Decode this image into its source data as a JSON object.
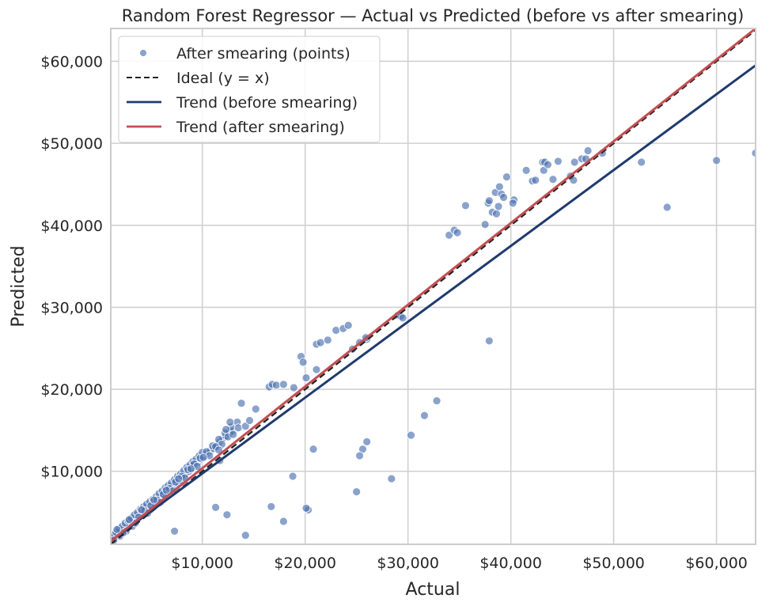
{
  "chart_data": {
    "type": "scatter",
    "title": "Random Forest Regressor — Actual vs Predicted (before vs after smearing)",
    "xlabel": "Actual",
    "ylabel": "Predicted",
    "xlim": [
      1100,
      63800
    ],
    "ylim": [
      1100,
      64000
    ],
    "xticks": [
      10000,
      20000,
      30000,
      40000,
      50000,
      60000
    ],
    "xtick_labels": [
      "$10,000",
      "$20,000",
      "$30,000",
      "$40,000",
      "$50,000",
      "$60,000"
    ],
    "yticks": [
      10000,
      20000,
      30000,
      40000,
      50000,
      60000
    ],
    "ytick_labels": [
      "$10,000",
      "$20,000",
      "$30,000",
      "$40,000",
      "$50,000",
      "$60,000"
    ],
    "grid": true,
    "legend_position": "top-left",
    "colors": {
      "points": "#4c72b0",
      "ideal": "#222222",
      "trend_before": "#1f3a6e",
      "trend_after": "#c44e52",
      "grid": "#d0d0d0",
      "frame": "#cccccc"
    },
    "series": [
      {
        "name": "After smearing (points)",
        "kind": "scatter",
        "points": [
          [
            1200,
            1700
          ],
          [
            1500,
            2000
          ],
          [
            1800,
            2400
          ],
          [
            2100,
            2600
          ],
          [
            2400,
            2900
          ],
          [
            2700,
            3200
          ],
          [
            3000,
            3500
          ],
          [
            3300,
            3900
          ],
          [
            3600,
            4200
          ],
          [
            3900,
            4500
          ],
          [
            4200,
            4800
          ],
          [
            4500,
            5100
          ],
          [
            4800,
            5400
          ],
          [
            5100,
            5700
          ],
          [
            5400,
            6000
          ],
          [
            5700,
            6300
          ],
          [
            6000,
            6700
          ],
          [
            6300,
            7000
          ],
          [
            6600,
            7400
          ],
          [
            6900,
            7800
          ],
          [
            7200,
            8200
          ],
          [
            7500,
            8600
          ],
          [
            7800,
            8900
          ],
          [
            8100,
            9300
          ],
          [
            8400,
            9700
          ],
          [
            8700,
            10000
          ],
          [
            9000,
            10400
          ],
          [
            9300,
            10800
          ],
          [
            9600,
            11100
          ],
          [
            9900,
            11500
          ],
          [
            10200,
            11800
          ],
          [
            10500,
            12200
          ],
          [
            10800,
            12500
          ],
          [
            11100,
            12800
          ],
          [
            11400,
            13200
          ],
          [
            11700,
            13600
          ],
          [
            12000,
            14000
          ],
          [
            12300,
            14300
          ],
          [
            12600,
            14600
          ],
          [
            12900,
            14900
          ],
          [
            1300,
            2200
          ],
          [
            1600,
            2600
          ],
          [
            1900,
            3000
          ],
          [
            2200,
            3300
          ],
          [
            2500,
            3700
          ],
          [
            2800,
            4000
          ],
          [
            3100,
            4300
          ],
          [
            3400,
            4700
          ],
          [
            3700,
            5000
          ],
          [
            4000,
            5400
          ],
          [
            4300,
            5700
          ],
          [
            4600,
            6000
          ],
          [
            4900,
            6300
          ],
          [
            5200,
            6600
          ],
          [
            5500,
            6900
          ],
          [
            5800,
            7300
          ],
          [
            6100,
            7600
          ],
          [
            6400,
            8000
          ],
          [
            6700,
            8300
          ],
          [
            7000,
            8600
          ],
          [
            7300,
            9000
          ],
          [
            7600,
            9400
          ],
          [
            7900,
            9700
          ],
          [
            8200,
            10100
          ],
          [
            8500,
            10500
          ],
          [
            8800,
            10800
          ],
          [
            9100,
            11200
          ],
          [
            9400,
            11500
          ],
          [
            9700,
            11900
          ],
          [
            10000,
            12300
          ],
          [
            2000,
            2100
          ],
          [
            2600,
            2700
          ],
          [
            3200,
            3300
          ],
          [
            3800,
            4400
          ],
          [
            4400,
            5200
          ],
          [
            5000,
            5800
          ],
          [
            5600,
            6500
          ],
          [
            6200,
            7200
          ],
          [
            6800,
            7900
          ],
          [
            7400,
            8700
          ],
          [
            8000,
            9400
          ],
          [
            8600,
            10200
          ],
          [
            9200,
            10900
          ],
          [
            9800,
            11600
          ],
          [
            10400,
            12400
          ],
          [
            11000,
            13100
          ],
          [
            11600,
            13900
          ],
          [
            12200,
            14700
          ],
          [
            12800,
            15400
          ],
          [
            13400,
            16000
          ],
          [
            1400,
            1600
          ],
          [
            2300,
            2500
          ],
          [
            3500,
            3700
          ],
          [
            4700,
            4900
          ],
          [
            5900,
            6200
          ],
          [
            7100,
            7600
          ],
          [
            8300,
            9200
          ],
          [
            9500,
            10600
          ],
          [
            10700,
            11900
          ],
          [
            11900,
            13300
          ],
          [
            1700,
            2900
          ],
          [
            2900,
            4100
          ],
          [
            4100,
            5300
          ],
          [
            5300,
            6500
          ],
          [
            6500,
            7700
          ],
          [
            7700,
            9100
          ],
          [
            8900,
            10300
          ],
          [
            10100,
            11700
          ],
          [
            11300,
            13000
          ],
          [
            12500,
            14200
          ],
          [
            13000,
            14500
          ],
          [
            13500,
            15300
          ],
          [
            13800,
            18300
          ],
          [
            14200,
            15500
          ],
          [
            14600,
            16200
          ],
          [
            15200,
            17600
          ],
          [
            16500,
            20300
          ],
          [
            16800,
            20600
          ],
          [
            17200,
            20500
          ],
          [
            17900,
            20600
          ],
          [
            18900,
            20200
          ],
          [
            19600,
            24000
          ],
          [
            19800,
            23300
          ],
          [
            20100,
            21400
          ],
          [
            21100,
            25500
          ],
          [
            21500,
            25700
          ],
          [
            22200,
            26000
          ],
          [
            21100,
            22400
          ],
          [
            23000,
            27200
          ],
          [
            23700,
            27400
          ],
          [
            24200,
            27800
          ],
          [
            24600,
            24900
          ],
          [
            25300,
            25700
          ],
          [
            26000,
            26100
          ],
          [
            25900,
            26300
          ],
          [
            29000,
            29000
          ],
          [
            29300,
            28900
          ],
          [
            29500,
            28700
          ],
          [
            34000,
            38800
          ],
          [
            34500,
            39400
          ],
          [
            34800,
            39100
          ],
          [
            35600,
            42400
          ],
          [
            37500,
            40100
          ],
          [
            37800,
            42700
          ],
          [
            37900,
            43000
          ],
          [
            38200,
            41600
          ],
          [
            38500,
            44000
          ],
          [
            38600,
            41400
          ],
          [
            38800,
            42300
          ],
          [
            38900,
            44700
          ],
          [
            39100,
            43800
          ],
          [
            39300,
            43400
          ],
          [
            39600,
            45900
          ],
          [
            40300,
            43100
          ],
          [
            40200,
            42700
          ],
          [
            41500,
            46700
          ],
          [
            42100,
            45400
          ],
          [
            42400,
            45500
          ],
          [
            43100,
            47700
          ],
          [
            43200,
            46700
          ],
          [
            43300,
            47700
          ],
          [
            43600,
            47400
          ],
          [
            44100,
            45600
          ],
          [
            44600,
            47800
          ],
          [
            45800,
            46000
          ],
          [
            46200,
            47700
          ],
          [
            46100,
            45500
          ],
          [
            46900,
            48100
          ],
          [
            47300,
            48100
          ],
          [
            47500,
            49100
          ],
          [
            48900,
            48800
          ],
          [
            52700,
            47700
          ],
          [
            55200,
            42200
          ],
          [
            60000,
            47900
          ],
          [
            63800,
            48800
          ],
          [
            37900,
            25900
          ],
          [
            32800,
            18600
          ],
          [
            31600,
            16800
          ],
          [
            30300,
            14400
          ],
          [
            28400,
            9100
          ],
          [
            26000,
            13600
          ],
          [
            25600,
            12700
          ],
          [
            25300,
            11900
          ],
          [
            25000,
            7500
          ],
          [
            20800,
            12700
          ],
          [
            20300,
            5300
          ],
          [
            20100,
            5500
          ],
          [
            18800,
            9400
          ],
          [
            17900,
            3900
          ],
          [
            16700,
            5700
          ],
          [
            14200,
            2200
          ],
          [
            12400,
            4700
          ],
          [
            11300,
            5600
          ],
          [
            7300,
            2700
          ],
          [
            11700,
            11300
          ],
          [
            11600,
            12600
          ],
          [
            12300,
            15100
          ],
          [
            12700,
            16000
          ]
        ]
      },
      {
        "name": "Ideal (y = x)",
        "kind": "line",
        "style": "dashed",
        "points": [
          [
            1100,
            1100
          ],
          [
            63800,
            63800
          ]
        ]
      },
      {
        "name": "Trend (before smearing)",
        "kind": "line",
        "points": [
          [
            1100,
            1500
          ],
          [
            63800,
            59500
          ]
        ]
      },
      {
        "name": "Trend (after smearing)",
        "kind": "line",
        "points": [
          [
            1100,
            1500
          ],
          [
            63800,
            64000
          ]
        ]
      }
    ]
  }
}
